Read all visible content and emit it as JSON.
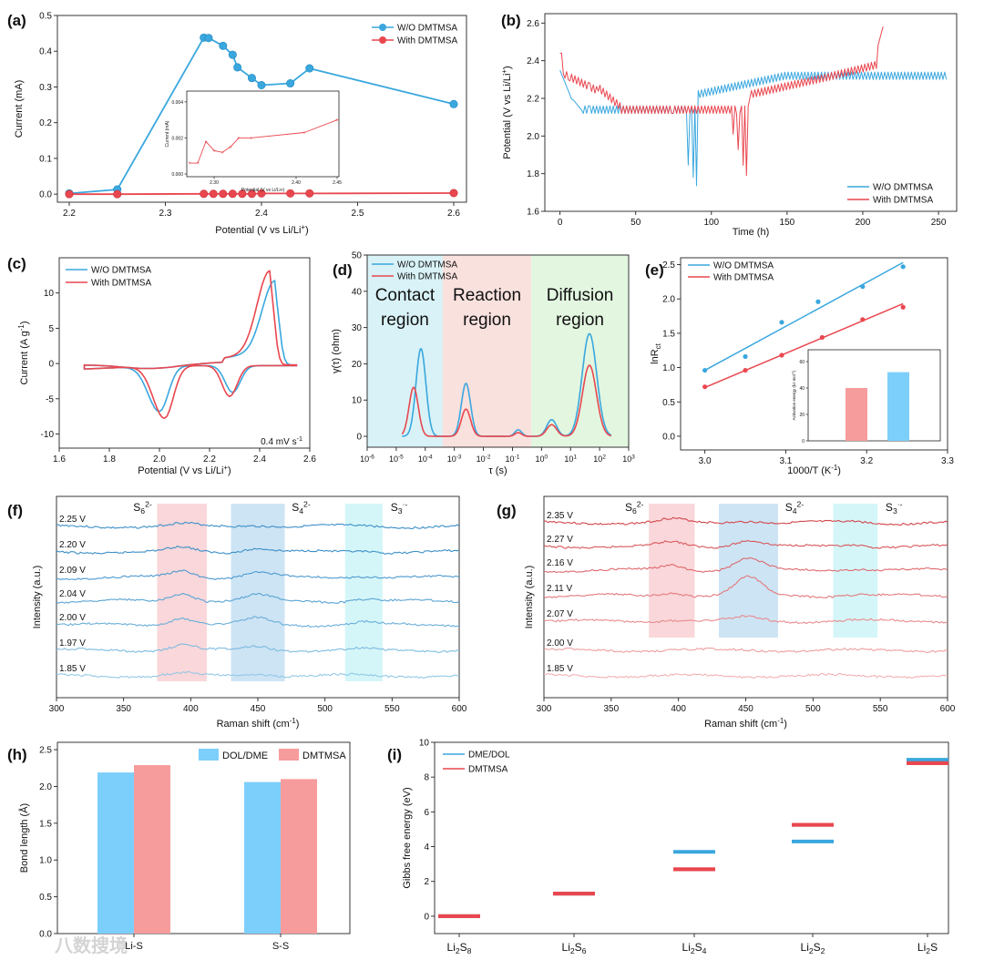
{
  "colors": {
    "blue": "#3aa7de",
    "red": "#e9474f",
    "blue_bar": "#7dcffb",
    "red_bar": "#f79c9c",
    "contact": "#d8f2f7",
    "reaction": "#f9e1de",
    "diffusion": "#e2f6e0",
    "pink_band": "#f9d7da",
    "blue_band": "#cde4f4",
    "cyan_band": "#d5f6f8"
  },
  "watermark": "八数搜境",
  "chart_data": [
    {
      "id": "a",
      "type": "line",
      "panel_label": "(a)",
      "xlabel": "Potential (V vs Li/Li",
      "xlabel_sup": "+",
      "xlabel_tail": ")",
      "ylabel": "Current (mA)",
      "xlim": [
        2.2,
        2.6
      ],
      "ylim": [
        -0.02,
        0.5
      ],
      "xticks": [
        2.2,
        2.3,
        2.4,
        2.5,
        2.6
      ],
      "yticks": [
        0.0,
        0.1,
        0.2,
        0.3,
        0.4,
        0.5
      ],
      "xtick_labels": [
        "2.2",
        "2.3",
        "2.4",
        "2.5",
        "2.6"
      ],
      "ytick_labels": [
        "0.0",
        "0.1",
        "0.2",
        "0.3",
        "0.4",
        "0.5"
      ],
      "legend": [
        "W/O DMTMSA",
        "With DMTMSA"
      ],
      "series": [
        {
          "name": "W/O DMTMSA",
          "x": [
            2.2,
            2.25,
            2.34,
            2.345,
            2.36,
            2.37,
            2.375,
            2.39,
            2.4,
            2.43,
            2.45,
            2.6
          ],
          "y": [
            0.002,
            0.013,
            0.438,
            0.437,
            0.415,
            0.39,
            0.355,
            0.325,
            0.305,
            0.31,
            0.352,
            0.252
          ]
        },
        {
          "name": "With DMTMSA",
          "x": [
            2.2,
            2.25,
            2.34,
            2.35,
            2.36,
            2.37,
            2.38,
            2.39,
            2.4,
            2.43,
            2.45,
            2.6
          ],
          "y": [
            0.0,
            0.0,
            0.001,
            0.001,
            0.001,
            0.001,
            0.001,
            0.001,
            0.002,
            0.002,
            0.002,
            0.003
          ]
        }
      ],
      "inset": {
        "xlabel": "Potential (V vs Li/Li+)",
        "ylabel": "Current (mA)",
        "xticks": [
          2.3,
          2.4,
          2.45
        ],
        "xtick_labels": [
          "2.30",
          "2.40",
          "2.45"
        ],
        "yticks": [
          0.0,
          0.002,
          0.004
        ],
        "ytick_labels": [
          "0.000",
          "0.002",
          "0.004"
        ],
        "xlim": [
          2.27,
          2.45
        ],
        "ylim": [
          0.0,
          0.0045
        ],
        "x": [
          2.27,
          2.28,
          2.29,
          2.3,
          2.31,
          2.32,
          2.33,
          2.345,
          2.41,
          2.45
        ],
        "y": [
          0.0006,
          0.0006,
          0.0018,
          0.0013,
          0.0012,
          0.0015,
          0.002,
          0.002,
          0.0023,
          0.003
        ]
      }
    },
    {
      "id": "b",
      "type": "line",
      "panel_label": "(b)",
      "xlabel": "Time (h)",
      "ylabel": "Potential (V vs Li/Li",
      "ylabel_sup": "+",
      "ylabel_tail": ")",
      "xlim": [
        -10,
        262
      ],
      "ylim": [
        1.6,
        2.65
      ],
      "xticks": [
        0,
        50,
        100,
        150,
        200,
        250
      ],
      "yticks": [
        1.6,
        1.8,
        2.0,
        2.2,
        2.4,
        2.6
      ],
      "xtick_labels": [
        "0",
        "50",
        "100",
        "150",
        "200",
        "250"
      ],
      "ytick_labels": [
        "1.6",
        "1.8",
        "2.0",
        "2.2",
        "2.4",
        "2.6"
      ],
      "legend": [
        "W/O DMTMSA",
        "With DMTMSA"
      ]
    },
    {
      "id": "c",
      "type": "line",
      "panel_label": "(c)",
      "xlabel": "Potential (V vs Li/Li",
      "xlabel_sup": "+",
      "xlabel_tail": ")",
      "ylabel": "Current (A g",
      "ylabel_sup": "-1",
      "ylabel_tail": ")",
      "xlim": [
        1.6,
        2.6
      ],
      "ylim": [
        -12,
        15
      ],
      "xticks": [
        1.6,
        1.8,
        2.0,
        2.2,
        2.4,
        2.6
      ],
      "yticks": [
        -10,
        -5,
        0,
        5,
        10
      ],
      "xtick_labels": [
        "1.6",
        "1.8",
        "2.0",
        "2.2",
        "2.4",
        "2.6"
      ],
      "ytick_labels": [
        "-10",
        "-5",
        "0",
        "5",
        "10"
      ],
      "legend": [
        "W/O DMTMSA",
        "With DMTMSA"
      ],
      "annotation": "0.4 mV s",
      "annotation_sup": "-1"
    },
    {
      "id": "d",
      "type": "line",
      "panel_label": "(d)",
      "xlabel": "τ (s)",
      "ylabel": "γ(τ) (ohm)",
      "xlim_log10": [
        -6,
        3
      ],
      "ylim": [
        -3,
        50
      ],
      "xticks_log10": [
        -6,
        -5,
        -4,
        -3,
        -2,
        -1,
        0,
        1,
        2,
        3
      ],
      "xtick_labels": [
        "10",
        "10",
        "10",
        "10",
        "10",
        "10",
        "10",
        "10",
        "10",
        "10"
      ],
      "xtick_sups": [
        "-6",
        "-5",
        "-4",
        "-3",
        "-2",
        "-1",
        "0",
        "1",
        "2",
        "3"
      ],
      "yticks": [
        0,
        10,
        20,
        30,
        40,
        50
      ],
      "ytick_labels": [
        "0",
        "10",
        "20",
        "30",
        "40",
        "50"
      ],
      "legend": [
        "W/O DMTMSA",
        "With DMTMSA"
      ],
      "regions": [
        {
          "line1": "Contact",
          "line2": "region",
          "from": -6,
          "to": -3.4
        },
        {
          "line1": "Reaction",
          "line2": "region",
          "from": -3.4,
          "to": -0.35
        },
        {
          "line1": "Diffusion",
          "line2": "region",
          "from": -0.35,
          "to": 3
        }
      ],
      "peaks": {
        "W/O DMTMSA": [
          [
            -4.15,
            24.2,
            0.17
          ],
          [
            -2.6,
            14.6,
            0.16
          ],
          [
            -0.8,
            1.8,
            0.12
          ],
          [
            0.35,
            4.6,
            0.17
          ],
          [
            1.65,
            28.3,
            0.25
          ]
        ],
        "With DMTMSA": [
          [
            -4.4,
            13.5,
            0.16
          ],
          [
            -2.6,
            7.5,
            0.16
          ],
          [
            -0.8,
            1.0,
            0.12
          ],
          [
            0.35,
            3.2,
            0.17
          ],
          [
            1.65,
            19.6,
            0.24
          ]
        ]
      }
    },
    {
      "id": "e",
      "type": "scatter",
      "panel_label": "(e)",
      "xlabel": "1000/T (K",
      "xlabel_sup": "-1",
      "xlabel_tail": ")",
      "ylabel": "lnR",
      "ylabel_sub": "ct",
      "xlim": [
        2.97,
        3.3
      ],
      "ylim": [
        -0.2,
        2.6
      ],
      "xticks": [
        3.0,
        3.1,
        3.2,
        3.3
      ],
      "yticks": [
        0.0,
        0.5,
        1.0,
        1.5,
        2.0,
        2.5
      ],
      "xtick_labels": [
        "3.0",
        "3.1",
        "3.2",
        "3.3"
      ],
      "ytick_labels": [
        "0.0",
        "0.5",
        "1.0",
        "1.5",
        "2.0",
        "2.5"
      ],
      "legend": [
        "W/O DMTMSA",
        "With DMTMSA"
      ],
      "series": [
        {
          "name": "W/O DMTMSA",
          "x": [
            3.0,
            3.05,
            3.095,
            3.14,
            3.195,
            3.245
          ],
          "y": [
            0.96,
            1.16,
            1.66,
            1.96,
            2.18,
            2.47
          ],
          "fit": [
            0.96,
            2.53
          ]
        },
        {
          "name": "With DMTMSA",
          "x": [
            3.0,
            3.05,
            3.095,
            3.145,
            3.195,
            3.245
          ],
          "y": [
            0.72,
            0.96,
            1.18,
            1.44,
            1.7,
            1.88
          ],
          "fit": [
            0.71,
            1.93
          ]
        }
      ],
      "inset": {
        "ylabel": "Activation energy (kJ mol",
        "ylabel_sup": "-1",
        "ylabel_tail": ")",
        "yticks": [
          0,
          20,
          40,
          60
        ],
        "ytick_labels": [
          "0",
          "20",
          "40",
          "60"
        ],
        "values": [
          40,
          52
        ]
      }
    },
    {
      "id": "f",
      "type": "line",
      "panel_label": "(f)",
      "xlabel": "Raman shift (cm",
      "xlabel_sup": "-1",
      "xlabel_tail": ")",
      "ylabel": "Intensity (a.u.)",
      "xlim": [
        300,
        600
      ],
      "xticks": [
        300,
        350,
        400,
        450,
        500,
        550,
        600
      ],
      "xtick_labels": [
        "300",
        "350",
        "400",
        "450",
        "500",
        "550",
        "600"
      ],
      "curves": [
        "2.25 V",
        "2.20 V",
        "2.09 V",
        "2.04 V",
        "2.00 V",
        "1.97 V",
        "1.85 V"
      ],
      "peak_amps": [
        [
          0.3,
          0.2,
          0.1
        ],
        [
          0.5,
          0.5,
          0.2
        ],
        [
          0.8,
          0.6,
          0.3
        ],
        [
          1.0,
          0.7,
          0.4
        ],
        [
          0.9,
          0.8,
          0.4
        ],
        [
          0.7,
          0.5,
          0.2
        ],
        [
          0.3,
          0.3,
          0.1
        ]
      ],
      "bands": [
        {
          "species": "S",
          "sub": "6",
          "sup": "2-",
          "from": 375,
          "to": 412
        },
        {
          "species": "S",
          "sub": "4",
          "sup": "2-",
          "from": 430,
          "to": 470
        },
        {
          "species": "S",
          "sub": "3",
          "sup": "·-",
          "from": 515,
          "to": 543
        }
      ]
    },
    {
      "id": "g",
      "type": "line",
      "panel_label": "(g)",
      "xlabel": "Raman shift (cm",
      "xlabel_sup": "-1",
      "xlabel_tail": ")",
      "ylabel": "Intensity (a.u.)",
      "xlim": [
        300,
        600
      ],
      "xticks": [
        300,
        350,
        400,
        450,
        500,
        550,
        600
      ],
      "xtick_labels": [
        "300",
        "350",
        "400",
        "450",
        "500",
        "550",
        "600"
      ],
      "curves": [
        "2.35 V",
        "2.27 V",
        "2.16 V",
        "2.11 V",
        "2.07 V",
        "2.00 V",
        "1.85 V"
      ],
      "peak_amps": [
        [
          0.4,
          0.3,
          0.2
        ],
        [
          0.5,
          0.8,
          0.3
        ],
        [
          0.6,
          1.4,
          0.3
        ],
        [
          0.4,
          2.2,
          0.2
        ],
        [
          0.2,
          0.5,
          0.1
        ],
        [
          0.05,
          0.05,
          0.0
        ],
        [
          0.0,
          0.0,
          0.0
        ]
      ],
      "bands": [
        {
          "species": "S",
          "sub": "6",
          "sup": "2-",
          "from": 378,
          "to": 412
        },
        {
          "species": "S",
          "sub": "4",
          "sup": "2-",
          "from": 430,
          "to": 474
        },
        {
          "species": "S",
          "sub": "3",
          "sup": "·-",
          "from": 515,
          "to": 548
        }
      ]
    },
    {
      "id": "h",
      "type": "bar",
      "panel_label": "(h)",
      "ylabel": "Bond length (Å)",
      "categories": [
        "Li-S",
        "S-S"
      ],
      "series": [
        {
          "name": "DOL/DME",
          "values": [
            2.19,
            2.06
          ]
        },
        {
          "name": "DMTMSA",
          "values": [
            2.29,
            2.1
          ]
        }
      ],
      "ylim": [
        0,
        2.6
      ],
      "yticks": [
        0,
        0.5,
        1.0,
        1.5,
        2.0,
        2.5
      ],
      "ytick_labels": [
        "0.0",
        "0.5",
        "1.0",
        "1.5",
        "2.0",
        "2.5"
      ]
    },
    {
      "id": "i",
      "type": "bar",
      "panel_label": "(i)",
      "ylabel": "Gibbs free energy (eV)",
      "categories": [
        "Li2S8",
        "Li2S6",
        "Li2S4",
        "Li2S2",
        "Li2S"
      ],
      "category_labels": [
        {
          "a": "Li",
          "s1": "2",
          "b": "S",
          "s2": "8"
        },
        {
          "a": "Li",
          "s1": "2",
          "b": "S",
          "s2": "6"
        },
        {
          "a": "Li",
          "s1": "2",
          "b": "S",
          "s2": "4"
        },
        {
          "a": "Li",
          "s1": "2",
          "b": "S",
          "s2": "2"
        },
        {
          "a": "Li",
          "s1": "2",
          "b": "S",
          "s2": ""
        }
      ],
      "series": [
        {
          "name": "DME/DOL",
          "values": [
            0.0,
            1.3,
            3.7,
            4.3,
            9.0
          ]
        },
        {
          "name": "DMTMSA",
          "values": [
            0.0,
            1.3,
            2.7,
            5.25,
            8.8
          ]
        }
      ],
      "ylim": [
        -1,
        10
      ],
      "yticks": [
        0,
        2,
        4,
        6,
        8,
        10
      ],
      "ytick_labels": [
        "0",
        "2",
        "4",
        "6",
        "8",
        "10"
      ]
    }
  ]
}
